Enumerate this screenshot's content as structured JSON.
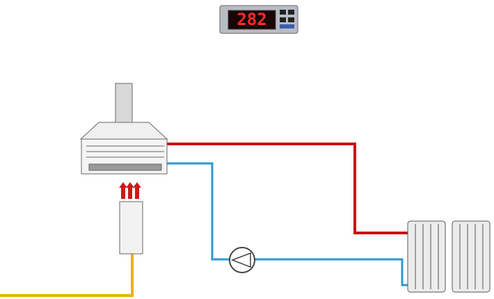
{
  "display": {
    "reading": "282"
  }
}
